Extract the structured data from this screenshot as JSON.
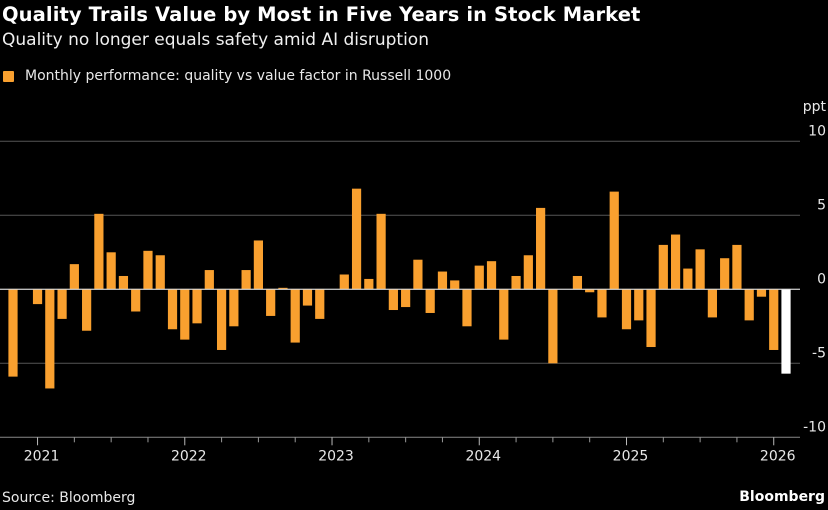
{
  "header": {
    "title": "Quality Trails Value by Most in Five Years in Stock Market",
    "subtitle": "Quality no longer equals safety amid AI disruption"
  },
  "footer": {
    "source": "Source: Bloomberg",
    "brand": "Bloomberg"
  },
  "colors": {
    "bar": "#f9a02f",
    "highlight": "#ffffff",
    "grid": "#555555",
    "background": "#000000"
  },
  "chart_data": {
    "type": "bar",
    "title": "Quality Trails Value by Most in Five Years in Stock Market",
    "subtitle": "Quality no longer equals safety amid AI disruption",
    "legend": {
      "position": "top-left",
      "entries": [
        "Monthly performance: quality vs value factor in Russell 1000"
      ]
    },
    "series": [
      {
        "name": "Monthly performance: quality vs value factor in Russell 1000"
      }
    ],
    "unit": "ppt",
    "ylim": [
      -10,
      10
    ],
    "yticks": [
      10,
      5,
      0,
      -5,
      -10
    ],
    "ytick_labels": [
      "10",
      "5",
      "0",
      "-5",
      "-10"
    ],
    "grid": true,
    "x_start": "2020-11",
    "xtick_labels": [
      "2021",
      "2022",
      "2023",
      "2024",
      "2025",
      "2026"
    ],
    "highlight_last": true,
    "x": [
      "2020-11",
      "2020-12",
      "2021-01",
      "2021-02",
      "2021-03",
      "2021-04",
      "2021-05",
      "2021-06",
      "2021-07",
      "2021-08",
      "2021-09",
      "2021-10",
      "2021-11",
      "2021-12",
      "2022-01",
      "2022-02",
      "2022-03",
      "2022-04",
      "2022-05",
      "2022-06",
      "2022-07",
      "2022-08",
      "2022-09",
      "2022-10",
      "2022-11",
      "2022-12",
      "2023-01",
      "2023-02",
      "2023-03",
      "2023-04",
      "2023-05",
      "2023-06",
      "2023-07",
      "2023-08",
      "2023-09",
      "2023-10",
      "2023-11",
      "2023-12",
      "2024-01",
      "2024-02",
      "2024-03",
      "2024-04",
      "2024-05",
      "2024-06",
      "2024-07",
      "2024-08",
      "2024-09",
      "2024-10",
      "2024-11",
      "2024-12",
      "2025-01",
      "2025-02",
      "2025-03",
      "2025-04",
      "2025-05",
      "2025-06",
      "2025-07",
      "2025-08",
      "2025-09",
      "2025-10",
      "2025-11",
      "2025-12",
      "2026-01",
      "2026-02"
    ],
    "values": [
      -5.9,
      0,
      -1.0,
      -6.7,
      -2.0,
      1.7,
      -2.8,
      5.1,
      2.5,
      0.9,
      -1.5,
      2.6,
      2.3,
      -2.7,
      -3.4,
      -2.3,
      1.3,
      -4.1,
      -2.5,
      1.3,
      3.3,
      -1.8,
      0.1,
      -3.6,
      -1.1,
      -2.0,
      0,
      1.0,
      6.8,
      0.7,
      5.1,
      -1.4,
      -1.2,
      2.0,
      -1.6,
      1.2,
      0.6,
      -2.5,
      1.6,
      1.9,
      -3.4,
      0.9,
      2.3,
      5.5,
      -5.0,
      0,
      0.9,
      -0.2,
      -1.9,
      6.6,
      -2.7,
      -2.1,
      -3.9,
      3.0,
      3.7,
      1.4,
      2.7,
      -1.9,
      2.1,
      3.0,
      -2.1,
      -0.5,
      -4.1,
      -5.7
    ]
  }
}
